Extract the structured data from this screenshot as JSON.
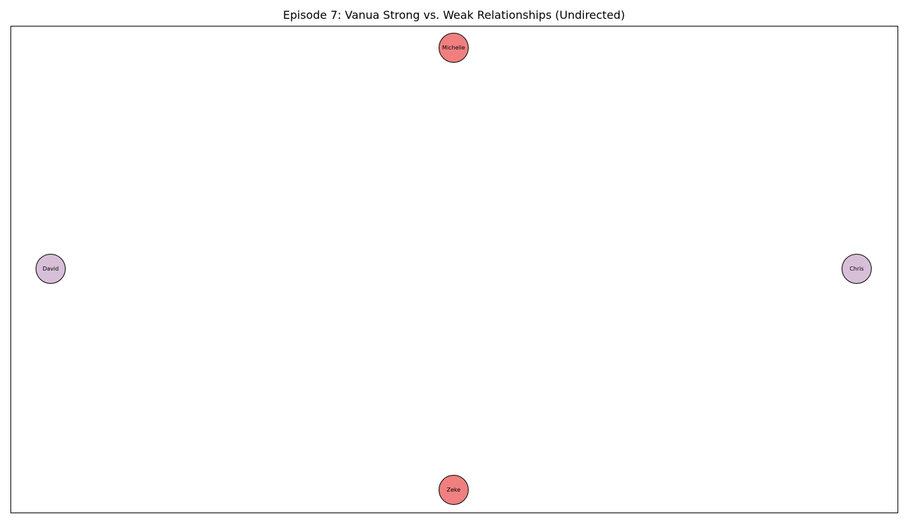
{
  "title": "Episode 7: Vanua Strong vs. Weak Relationships (Undirected)",
  "colors": {
    "red_node": "#f08080",
    "purple_node": "#d8bfd8"
  },
  "nodes": [
    {
      "id": "michelle",
      "label": "Michelle",
      "color": "#f08080"
    },
    {
      "id": "david",
      "label": "David",
      "color": "#d8bfd8"
    },
    {
      "id": "chris",
      "label": "Chris",
      "color": "#d8bfd8"
    },
    {
      "id": "zeke",
      "label": "Zeke",
      "color": "#f08080"
    }
  ],
  "edges": []
}
